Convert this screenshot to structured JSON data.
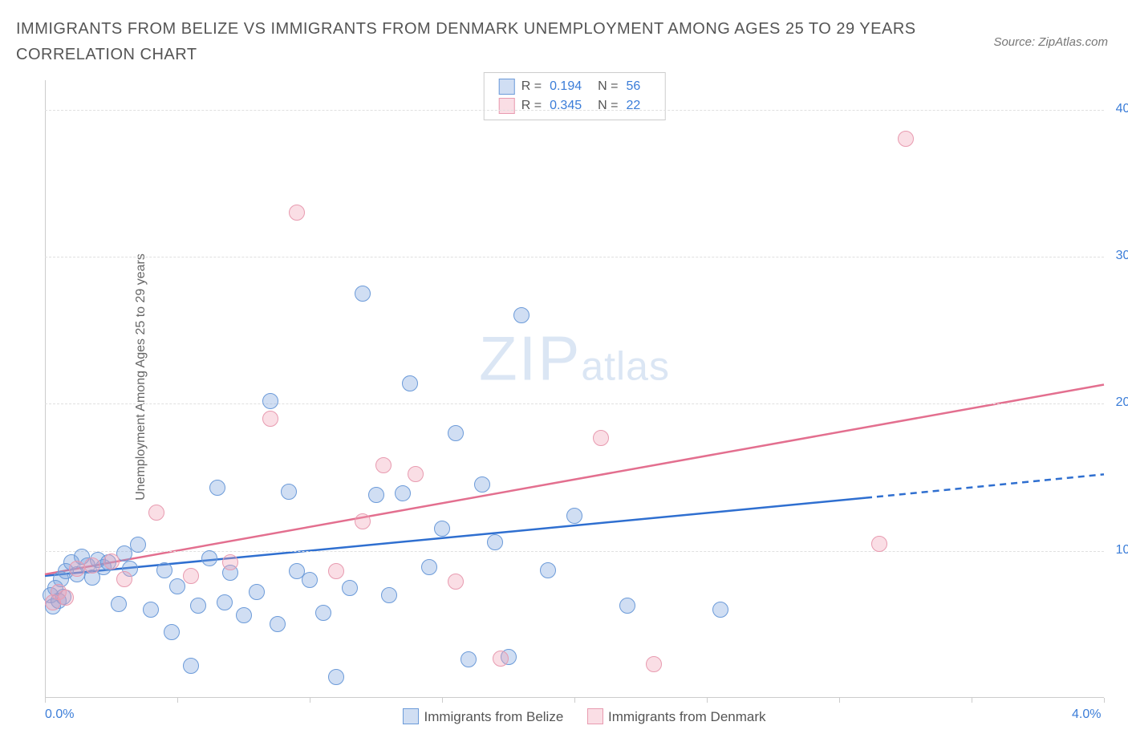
{
  "title": "IMMIGRANTS FROM BELIZE VS IMMIGRANTS FROM DENMARK UNEMPLOYMENT AMONG AGES 25 TO 29 YEARS CORRELATION CHART",
  "source": "Source: ZipAtlas.com",
  "ylabel": "Unemployment Among Ages 25 to 29 years",
  "watermark_a": "ZIP",
  "watermark_b": "atlas",
  "chart": {
    "type": "scatter",
    "background_color": "#ffffff",
    "grid_color": "#e0e0e0",
    "axis_color": "#cccccc",
    "label_color": "#3b7dd8",
    "text_color": "#555555",
    "marker_radius": 9,
    "marker_stroke_width": 1.5,
    "xlim": [
      0.0,
      4.0
    ],
    "ylim": [
      0.0,
      42.0
    ],
    "xticks": [
      0.0,
      0.5,
      1.0,
      1.5,
      2.0,
      2.5,
      3.0,
      3.5,
      4.0
    ],
    "xtick_labels": {
      "0": "0.0%",
      "8": "4.0%"
    },
    "yticks": [
      10.0,
      20.0,
      30.0,
      40.0
    ],
    "ytick_labels": [
      "10.0%",
      "20.0%",
      "30.0%",
      "40.0%"
    ],
    "series": [
      {
        "name": "Immigrants from Belize",
        "fill": "rgba(120,160,220,0.35)",
        "stroke": "#6c9bd9",
        "line_color": "#2f6fd0",
        "line_width": 2.5,
        "R": "0.194",
        "N": "56",
        "trend": {
          "x0": 0.0,
          "y0": 8.3,
          "x1": 3.1,
          "y1": 13.6,
          "x2": 4.0,
          "y2": 15.2
        },
        "points": [
          [
            0.02,
            7.0
          ],
          [
            0.03,
            6.2
          ],
          [
            0.04,
            7.5
          ],
          [
            0.05,
            6.6
          ],
          [
            0.06,
            8.1
          ],
          [
            0.07,
            6.9
          ],
          [
            0.08,
            8.6
          ],
          [
            0.1,
            9.2
          ],
          [
            0.12,
            8.4
          ],
          [
            0.14,
            9.6
          ],
          [
            0.16,
            9.0
          ],
          [
            0.18,
            8.2
          ],
          [
            0.2,
            9.4
          ],
          [
            0.22,
            8.9
          ],
          [
            0.24,
            9.2
          ],
          [
            0.28,
            6.4
          ],
          [
            0.32,
            8.8
          ],
          [
            0.35,
            10.4
          ],
          [
            0.4,
            6.0
          ],
          [
            0.45,
            8.7
          ],
          [
            0.5,
            7.6
          ],
          [
            0.55,
            2.2
          ],
          [
            0.58,
            6.3
          ],
          [
            0.62,
            9.5
          ],
          [
            0.65,
            14.3
          ],
          [
            0.7,
            8.5
          ],
          [
            0.75,
            5.6
          ],
          [
            0.8,
            7.2
          ],
          [
            0.85,
            20.2
          ],
          [
            0.88,
            5.0
          ],
          [
            0.92,
            14.0
          ],
          [
            0.95,
            8.6
          ],
          [
            1.0,
            8.0
          ],
          [
            1.05,
            5.8
          ],
          [
            1.1,
            1.4
          ],
          [
            1.15,
            7.5
          ],
          [
            1.2,
            27.5
          ],
          [
            1.25,
            13.8
          ],
          [
            1.3,
            7.0
          ],
          [
            1.35,
            13.9
          ],
          [
            1.38,
            21.4
          ],
          [
            1.45,
            8.9
          ],
          [
            1.55,
            18.0
          ],
          [
            1.6,
            2.6
          ],
          [
            1.65,
            14.5
          ],
          [
            1.7,
            10.6
          ],
          [
            1.75,
            2.8
          ],
          [
            1.8,
            26.0
          ],
          [
            1.9,
            8.7
          ],
          [
            2.0,
            12.4
          ],
          [
            2.2,
            6.3
          ],
          [
            2.55,
            6.0
          ],
          [
            0.3,
            9.8
          ],
          [
            0.48,
            4.5
          ],
          [
            0.68,
            6.5
          ],
          [
            1.5,
            11.5
          ]
        ]
      },
      {
        "name": "Immigrants from Denmark",
        "fill": "rgba(240,160,180,0.35)",
        "stroke": "#e89bb0",
        "line_color": "#e36f8f",
        "line_width": 2.5,
        "R": "0.345",
        "N": "22",
        "trend": {
          "x0": 0.0,
          "y0": 8.4,
          "x1": 4.0,
          "y1": 21.3
        },
        "points": [
          [
            0.03,
            6.5
          ],
          [
            0.05,
            7.2
          ],
          [
            0.08,
            6.8
          ],
          [
            0.12,
            8.8
          ],
          [
            0.18,
            9.0
          ],
          [
            0.25,
            9.3
          ],
          [
            0.3,
            8.1
          ],
          [
            0.42,
            12.6
          ],
          [
            0.55,
            8.3
          ],
          [
            0.7,
            9.2
          ],
          [
            0.85,
            19.0
          ],
          [
            0.95,
            33.0
          ],
          [
            1.1,
            8.6
          ],
          [
            1.2,
            12.0
          ],
          [
            1.28,
            15.8
          ],
          [
            1.4,
            15.2
          ],
          [
            1.55,
            7.9
          ],
          [
            1.72,
            2.7
          ],
          [
            2.1,
            17.7
          ],
          [
            2.3,
            2.3
          ],
          [
            3.15,
            10.5
          ],
          [
            3.25,
            38.0
          ]
        ]
      }
    ]
  },
  "legend_bottom": [
    "Immigrants from Belize",
    "Immigrants from Denmark"
  ]
}
